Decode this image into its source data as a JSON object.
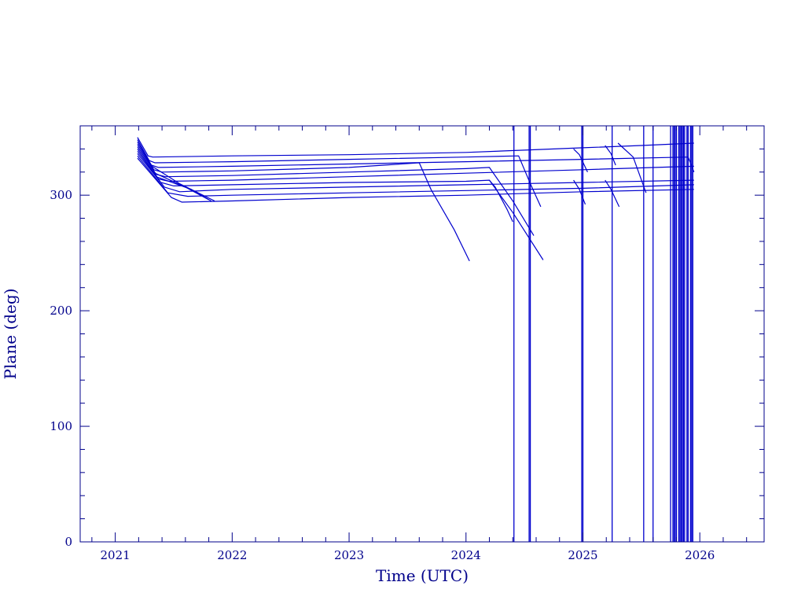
{
  "chart_data": {
    "type": "line",
    "title": "",
    "xlabel": "Time (UTC)",
    "ylabel": "Plane (deg)",
    "xlim": [
      2020.7,
      2026.55
    ],
    "ylim": [
      0,
      360
    ],
    "xticks": [
      2021,
      2022,
      2023,
      2024,
      2025,
      2026
    ],
    "xtick_labels": [
      "2021",
      "2022",
      "2023",
      "2024",
      "2025",
      "2026"
    ],
    "yticks": [
      0,
      100,
      200,
      300
    ],
    "ytick_labels": [
      "0",
      "100",
      "200",
      "300"
    ],
    "grid": false,
    "line_color": "#0000cd",
    "axis_color": "#00008b",
    "series": [
      {
        "x": [
          2021.19,
          2021.28,
          2021.32,
          2022.0,
          2023.0,
          2024.0,
          2024.5,
          2025.0,
          2025.5,
          2025.95
        ],
        "y": [
          350,
          334,
          333,
          334,
          335,
          337,
          339,
          341,
          343,
          345
        ]
      },
      {
        "x": [
          2021.19,
          2021.29,
          2021.34,
          2022.0,
          2023.0,
          2024.0,
          2024.45,
          2024.55,
          2024.64
        ],
        "y": [
          348,
          330,
          328,
          329,
          331,
          333,
          334,
          310,
          290
        ]
      },
      {
        "x": [
          2021.19,
          2021.31,
          2021.37,
          2022.0,
          2023.0,
          2024.0,
          2025.0,
          2025.9,
          2025.95
        ],
        "y": [
          346,
          326,
          324,
          325,
          327,
          329,
          331,
          333,
          320
        ]
      },
      {
        "x": [
          2021.19,
          2021.33,
          2021.4,
          2022.0,
          2023.0,
          2023.6,
          2023.7,
          2023.9,
          2024.03
        ],
        "y": [
          344,
          322,
          320,
          321,
          324,
          328,
          305,
          270,
          243
        ]
      },
      {
        "x": [
          2021.19,
          2021.35,
          2021.43,
          2022.0,
          2023.0,
          2024.0,
          2024.2,
          2024.4,
          2024.58
        ],
        "y": [
          342,
          318,
          316,
          317,
          320,
          323,
          324,
          295,
          265
        ]
      },
      {
        "x": [
          2021.19,
          2021.37,
          2021.46,
          2022.0,
          2023.0,
          2024.0,
          2025.0,
          2025.95
        ],
        "y": [
          340,
          314,
          312,
          313,
          316,
          319,
          322,
          325
        ]
      },
      {
        "x": [
          2021.19,
          2021.39,
          2021.5,
          2022.0,
          2023.0,
          2024.0,
          2024.2,
          2024.4,
          2024.66
        ],
        "y": [
          338,
          311,
          308,
          309,
          311,
          312,
          313,
          285,
          244
        ]
      },
      {
        "x": [
          2021.19,
          2021.42,
          2021.55,
          2022.0,
          2023.0,
          2024.0,
          2025.0,
          2025.95
        ],
        "y": [
          336,
          307,
          303,
          305,
          307,
          309,
          311,
          313
        ]
      },
      {
        "x": [
          2021.19,
          2021.45,
          2021.62,
          2022.0,
          2023.0,
          2024.0,
          2025.0,
          2025.95
        ],
        "y": [
          334,
          302,
          299,
          300,
          302,
          304,
          306,
          309
        ]
      },
      {
        "x": [
          2021.19,
          2021.48,
          2021.57,
          2022.0,
          2023.0,
          2024.0,
          2025.0,
          2025.95
        ],
        "y": [
          332,
          298,
          294,
          295,
          298,
          300,
          303,
          305
        ]
      },
      {
        "x": [
          2021.3,
          2021.55,
          2021.85
        ],
        "y": [
          326,
          310,
          295
        ]
      },
      {
        "x": [
          2021.32,
          2021.6,
          2021.8
        ],
        "y": [
          320,
          307,
          296
        ]
      },
      {
        "x": [
          2021.35,
          2021.65,
          2021.82
        ],
        "y": [
          316,
          305,
          295
        ]
      },
      {
        "x": [
          2024.2,
          2024.25,
          2024.35,
          2024.4
        ],
        "y": [
          313,
          307,
          288,
          277
        ]
      },
      {
        "x": [
          2024.92,
          2024.97,
          2025.02
        ],
        "y": [
          313,
          305,
          292
        ]
      },
      {
        "x": [
          2025.19,
          2025.24,
          2025.31
        ],
        "y": [
          313,
          305,
          290
        ]
      },
      {
        "x": [
          2025.3,
          2025.43,
          2025.54
        ],
        "y": [
          345,
          333,
          302
        ]
      },
      {
        "x": [
          2024.92,
          2024.97,
          2025.04
        ],
        "y": [
          340,
          335,
          320
        ]
      },
      {
        "x": [
          2025.19,
          2025.24,
          2025.28
        ],
        "y": [
          343,
          336,
          326
        ]
      }
    ],
    "vertical_lines": [
      2024.41,
      2024.54,
      2024.55,
      2024.99,
      2025.0,
      2025.25,
      2025.52,
      2025.6,
      2025.75,
      2025.77,
      2025.78,
      2025.79,
      2025.8,
      2025.82,
      2025.83,
      2025.84,
      2025.85,
      2025.86,
      2025.87,
      2025.89,
      2025.9,
      2025.92,
      2025.93,
      2025.94
    ],
    "vertical_line_bottom": 0,
    "vertical_line_top": 360
  }
}
